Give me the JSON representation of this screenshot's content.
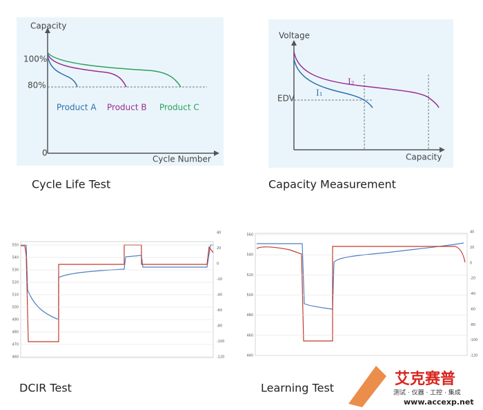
{
  "panels": [
    {
      "caption": "Cycle Life Test",
      "y_label": "Capacity",
      "x_label": "Cycle Number",
      "levels": [
        "100%",
        "80%",
        "0"
      ],
      "series": [
        "Product A",
        "Product B",
        "Product C"
      ]
    },
    {
      "caption": "Capacity Measurement",
      "y_label": "Voltage",
      "x_label": "Capacity",
      "levels": [
        "EDV"
      ],
      "curves": [
        "I₂",
        "I₁"
      ]
    },
    {
      "caption": "DCIR Test",
      "left_ticks": [
        "550",
        "540",
        "530",
        "520",
        "510",
        "500",
        "490",
        "480",
        "470",
        "460"
      ],
      "right_ticks": [
        "40",
        "20",
        "0",
        "-20",
        "-40",
        "-60",
        "-80",
        "-100",
        "-120"
      ]
    },
    {
      "caption": "Learning Test",
      "left_ticks": [
        "560",
        "540",
        "520",
        "500",
        "480",
        "460",
        "440"
      ],
      "right_ticks": [
        "40",
        "20",
        "0",
        "-20",
        "-40",
        "-60",
        "-80",
        "-100",
        "-120"
      ]
    }
  ],
  "watermark": {
    "brand": "艾克赛普",
    "tagline": "测试 · 仪器 · 工控 · 集成",
    "url": "www.accexp.net"
  }
}
